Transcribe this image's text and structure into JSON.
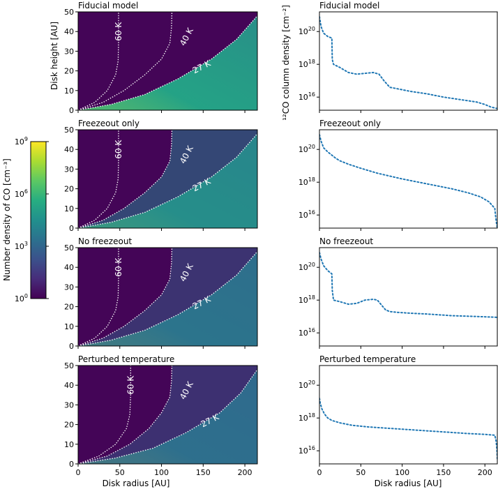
{
  "colorbar": {
    "label": "Number density of CO [cm⁻³]",
    "ticks": [
      {
        "base": "10",
        "exp": "0",
        "value": 0
      },
      {
        "base": "10",
        "exp": "3",
        "value": 3
      },
      {
        "base": "10",
        "exp": "6",
        "value": 6
      },
      {
        "base": "10",
        "exp": "9",
        "value": 9
      }
    ],
    "range": [
      0,
      9
    ],
    "colormap": [
      "#440154",
      "#472c7a",
      "#3b518b",
      "#2c718e",
      "#21908d",
      "#27ad81",
      "#5cc863",
      "#aadc32",
      "#fde725"
    ]
  },
  "shared": {
    "left_xlabel": "Disk radius [AU]",
    "right_xlabel": "Disk radius [AU]",
    "left_ylabel": "Disk height [AU]",
    "right_ylabel": "¹²CO column density [cm⁻²]",
    "x_ticks": [
      0,
      50,
      100,
      150,
      200
    ],
    "left_y_ticks": [
      0,
      10,
      20,
      30,
      40,
      50
    ],
    "right_y_ticks": [
      {
        "base": "10",
        "exp": "16",
        "value": 16
      },
      {
        "base": "10",
        "exp": "18",
        "value": 18
      },
      {
        "base": "10",
        "exp": "20",
        "value": 20
      }
    ],
    "line_color": "#1f77b4",
    "contour_color": "#ffffff"
  },
  "chart_data": [
    {
      "type": "heatmap",
      "title": "Fiducial model",
      "xlim": [
        0,
        215
      ],
      "ylim": [
        0,
        50
      ],
      "contours": [
        {
          "label": "60 K",
          "x": [
            0,
            20,
            35,
            45,
            48,
            48.5,
            48.5
          ],
          "y": [
            0,
            4,
            10,
            18,
            25,
            35,
            50
          ]
        },
        {
          "label": "40 K",
          "x": [
            0,
            30,
            55,
            80,
            100,
            110,
            112,
            112.5
          ],
          "y": [
            0,
            4,
            10,
            18,
            26,
            34,
            42,
            50
          ]
        },
        {
          "label": "27 K",
          "x": [
            0,
            40,
            80,
            120,
            160,
            190,
            215
          ],
          "y": [
            0,
            3,
            8,
            16,
            26,
            36,
            48
          ]
        }
      ],
      "regions": [
        {
          "fill": "strong",
          "x": [
            0,
            40,
            80,
            120,
            160,
            190,
            215
          ],
          "y": [
            0,
            3,
            8,
            16,
            26,
            36,
            48
          ]
        }
      ],
      "background_value": 0.1,
      "region_value": 5.5
    },
    {
      "type": "heatmap",
      "title": "Freezeout only",
      "xlim": [
        0,
        215
      ],
      "ylim": [
        0,
        50
      ],
      "contours": [
        {
          "label": "60 K",
          "x": [
            0,
            20,
            35,
            45,
            48,
            48.5,
            48.5
          ],
          "y": [
            0,
            4,
            10,
            18,
            25,
            35,
            50
          ]
        },
        {
          "label": "40 K",
          "x": [
            0,
            30,
            55,
            80,
            100,
            110,
            112,
            112.5
          ],
          "y": [
            0,
            4,
            10,
            18,
            26,
            34,
            42,
            50
          ]
        },
        {
          "label": "27 K",
          "x": [
            0,
            40,
            80,
            120,
            160,
            190,
            215
          ],
          "y": [
            0,
            3,
            8,
            16,
            26,
            36,
            48
          ]
        }
      ],
      "background_value": 0.1,
      "region_value": 5.5
    },
    {
      "type": "heatmap",
      "title": "No freezeout",
      "xlim": [
        0,
        215
      ],
      "ylim": [
        0,
        50
      ],
      "contours": [
        {
          "label": "60 K",
          "x": [
            0,
            20,
            35,
            45,
            48,
            48.5,
            48.5
          ],
          "y": [
            0,
            4,
            10,
            18,
            25,
            35,
            50
          ]
        },
        {
          "label": "40 K",
          "x": [
            0,
            30,
            55,
            80,
            100,
            110,
            112,
            112.5
          ],
          "y": [
            0,
            4,
            10,
            18,
            26,
            34,
            42,
            50
          ]
        },
        {
          "label": "27 K",
          "x": [
            0,
            40,
            80,
            120,
            160,
            190,
            215
          ],
          "y": [
            0,
            3,
            8,
            16,
            26,
            36,
            48
          ]
        }
      ],
      "background_value": 0.1,
      "region_value": 4.0
    },
    {
      "type": "heatmap",
      "title": "Perturbed temperature",
      "xlim": [
        0,
        215
      ],
      "ylim": [
        0,
        50
      ],
      "contours": [
        {
          "label": "60 K",
          "x": [
            0,
            25,
            45,
            58,
            62,
            63,
            63
          ],
          "y": [
            0,
            4,
            10,
            18,
            25,
            35,
            50
          ]
        },
        {
          "label": "40 K",
          "x": [
            0,
            35,
            62,
            85,
            100,
            110,
            112,
            112.5
          ],
          "y": [
            0,
            4,
            10,
            18,
            26,
            34,
            42,
            50
          ]
        },
        {
          "label": "27 K",
          "x": [
            0,
            45,
            90,
            130,
            170,
            195,
            215
          ],
          "y": [
            0,
            3,
            8,
            16,
            26,
            36,
            48
          ]
        }
      ],
      "background_value": 0.1,
      "region_value": 3.8
    },
    {
      "type": "line",
      "title": "Fiducial model",
      "xlim": [
        0,
        215
      ],
      "ylim": [
        15.2,
        21.2
      ],
      "yscale": "log",
      "x": [
        0,
        2,
        5,
        10,
        15,
        15.5,
        17,
        25,
        35,
        45,
        55,
        65,
        72,
        78,
        85,
        95,
        110,
        130,
        150,
        170,
        190,
        200,
        207,
        215
      ],
      "y": [
        20.9,
        20.3,
        19.9,
        19.7,
        19.6,
        18.3,
        18.0,
        17.8,
        17.5,
        17.4,
        17.45,
        17.5,
        17.4,
        17.0,
        16.6,
        16.5,
        16.35,
        16.2,
        16.0,
        15.85,
        15.7,
        15.55,
        15.4,
        15.3
      ]
    },
    {
      "type": "line",
      "title": "Freezeout only",
      "xlim": [
        0,
        215
      ],
      "ylim": [
        15.2,
        21.2
      ],
      "yscale": "log",
      "x": [
        0,
        2,
        5,
        10,
        15,
        20,
        25,
        35,
        50,
        70,
        100,
        130,
        160,
        180,
        195,
        205,
        212,
        213,
        214,
        215
      ],
      "y": [
        20.9,
        20.5,
        20.1,
        19.85,
        19.65,
        19.45,
        19.3,
        19.1,
        18.85,
        18.55,
        18.2,
        17.9,
        17.6,
        17.35,
        17.1,
        16.8,
        16.4,
        15.9,
        15.5,
        15.2
      ]
    },
    {
      "type": "line",
      "title": "No freezeout",
      "xlim": [
        0,
        215
      ],
      "ylim": [
        15.2,
        21.2
      ],
      "yscale": "log",
      "x": [
        0,
        2,
        5,
        10,
        15,
        15.5,
        17,
        25,
        35,
        45,
        55,
        65,
        70,
        75,
        80,
        85,
        95,
        110,
        130,
        160,
        190,
        215
      ],
      "y": [
        20.9,
        20.5,
        20.1,
        19.8,
        19.6,
        18.6,
        18.0,
        17.9,
        17.75,
        17.8,
        18.0,
        18.05,
        18.0,
        17.7,
        17.4,
        17.3,
        17.25,
        17.2,
        17.15,
        17.05,
        17.0,
        16.95
      ]
    },
    {
      "type": "line",
      "title": "Perturbed temperature",
      "xlim": [
        0,
        215
      ],
      "ylim": [
        15.2,
        21.2
      ],
      "yscale": "log",
      "x": [
        0,
        1,
        3,
        6,
        10,
        15,
        25,
        40,
        60,
        90,
        120,
        150,
        180,
        200,
        212,
        213.5,
        214.5,
        215
      ],
      "y": [
        19.2,
        18.9,
        18.55,
        18.25,
        18.0,
        17.85,
        17.7,
        17.55,
        17.45,
        17.35,
        17.25,
        17.15,
        17.05,
        17.0,
        16.95,
        16.6,
        16.1,
        15.5
      ]
    }
  ]
}
